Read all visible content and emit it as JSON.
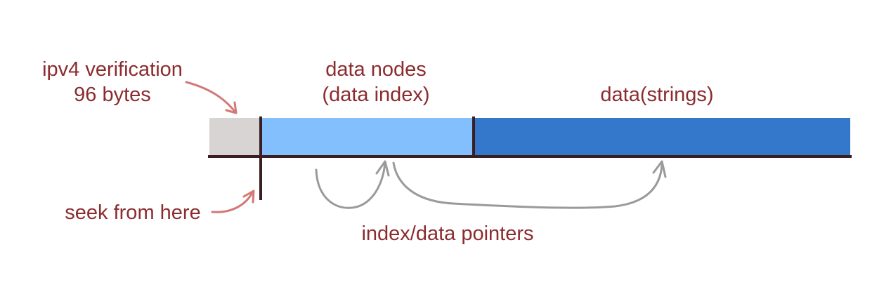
{
  "labels": {
    "ipv4_line1": "ipv4 verification",
    "ipv4_line2": "96 bytes",
    "nodes_line1": "data nodes",
    "nodes_line2": "(data index)",
    "strings": "data(strings)",
    "seek": "seek from here",
    "pointers": "index/data pointers"
  },
  "colors": {
    "ipv4_segment": "#d8d4d4",
    "nodes_segment": "#84bffd",
    "strings_segment": "#3478cc",
    "lines": "#3a1e22",
    "text": "#8b2c2f",
    "callout_arrow": "#d47878",
    "pointer_arrow": "#9a9a9a"
  }
}
